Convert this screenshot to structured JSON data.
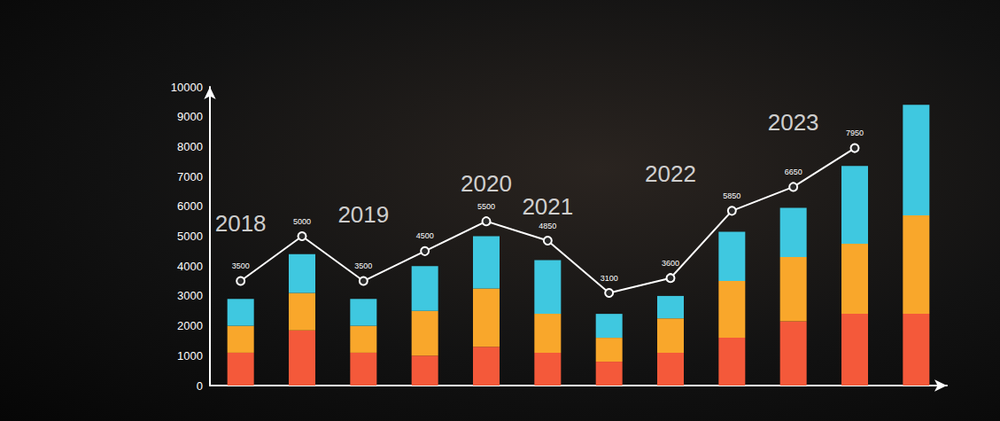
{
  "chart_data": {
    "type": "bar",
    "stacked": true,
    "grid": false,
    "tick_labels": "y",
    "categories": [
      null,
      null,
      null,
      null,
      null,
      null,
      null,
      null,
      null,
      null,
      null,
      null
    ],
    "series": [
      {
        "color": "#f4593a",
        "values": [
          1100,
          1850,
          1100,
          1000,
          1300,
          1100,
          800,
          1100,
          1600,
          2150,
          2400,
          2400
        ]
      },
      {
        "color": "#f9a72b",
        "values": [
          900,
          1250,
          900,
          1500,
          1950,
          1300,
          800,
          1150,
          1900,
          2150,
          2350,
          3300
        ]
      },
      {
        "color": "#3fc8e0",
        "values": [
          900,
          1300,
          900,
          1500,
          1750,
          1800,
          800,
          750,
          1650,
          1650,
          2600,
          3700
        ]
      },
      {
        "type": "line",
        "color": "#ffffff",
        "marker": "circle",
        "data_labels": true,
        "values": [
          3500,
          5000,
          3500,
          4500,
          5500,
          4850,
          3100,
          3600,
          5850,
          6650,
          7950,
          null
        ]
      }
    ],
    "ylim": [
      0,
      10000
    ],
    "yticks": [
      0,
      1000,
      2000,
      3000,
      4000,
      5000,
      6000,
      7000,
      8000,
      9000,
      10000
    ],
    "annotations": [
      {
        "text": "2018",
        "x": 0,
        "y": 5430
      },
      {
        "text": "2019",
        "x": 2,
        "y": 5730
      },
      {
        "text": "2020",
        "x": 4,
        "y": 6770
      },
      {
        "text": "2021",
        "x": 5,
        "y": 6000
      },
      {
        "text": "2022",
        "x": 7,
        "y": 7100
      },
      {
        "text": "2023",
        "x": 9,
        "y": 8810
      }
    ]
  }
}
